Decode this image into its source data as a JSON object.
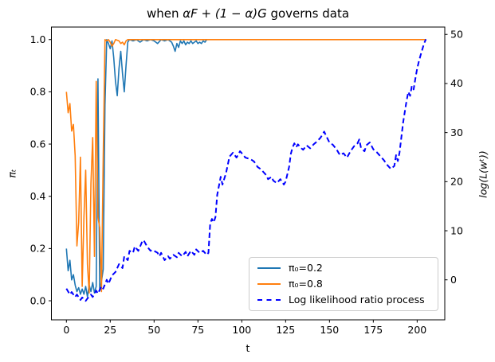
{
  "figure": {
    "background": "#ffffff",
    "spine_color": "#000000"
  },
  "chart_data": {
    "type": "line",
    "title_parts": {
      "prefix": "when ",
      "math": "αF + (1 − α)G",
      "suffix": " governs data"
    },
    "xlabel": "t",
    "ylabel_left": "πₜ",
    "ylabel_right": "log(L(wᵗ))",
    "grid": false,
    "legend_position": "lower right",
    "x_axis": {
      "view": [
        -8.55,
        215.75
      ],
      "tick_values": [
        0,
        25,
        50,
        75,
        100,
        125,
        150,
        175,
        200
      ],
      "tick_labels": [
        "0",
        "25",
        "50",
        "75",
        "100",
        "125",
        "150",
        "175",
        "200"
      ]
    },
    "y_left_axis": {
      "view": [
        -0.073,
        1.048
      ],
      "tick_values": [
        0.0,
        0.2,
        0.4,
        0.6,
        0.8,
        1.0
      ],
      "tick_labels": [
        "0.0",
        "0.2",
        "0.4",
        "0.6",
        "0.8",
        "1.0"
      ]
    },
    "y_right_axis": {
      "view": [
        -8.15,
        51.5
      ],
      "tick_values": [
        0,
        10,
        20,
        30,
        40,
        50
      ],
      "tick_labels": [
        "0",
        "10",
        "20",
        "30",
        "40",
        "50"
      ]
    },
    "series": [
      {
        "name": "π₀=0.2",
        "axis": "left",
        "color": "#1f77b4",
        "style": "solid",
        "width": 1.6,
        "points": [
          [
            0,
            0.2
          ],
          [
            1,
            0.115
          ],
          [
            2,
            0.155
          ],
          [
            3,
            0.08
          ],
          [
            4,
            0.1
          ],
          [
            5,
            0.06
          ],
          [
            6,
            0.035
          ],
          [
            7,
            0.05
          ],
          [
            8,
            0.025
          ],
          [
            9,
            0.045
          ],
          [
            10,
            0.025
          ],
          [
            11,
            0.055
          ],
          [
            12,
            0.015
          ],
          [
            13,
            0.06
          ],
          [
            14,
            0.035
          ],
          [
            15,
            0.07
          ],
          [
            16,
            0.03
          ],
          [
            17,
            0.055
          ],
          [
            18,
            0.85
          ],
          [
            19,
            0.04
          ],
          [
            20,
            0.075
          ],
          [
            21,
            0.12
          ],
          [
            22,
            0.75
          ],
          [
            23,
            1.0
          ],
          [
            24,
            0.985
          ],
          [
            25,
            0.965
          ],
          [
            26,
            0.995
          ],
          [
            27,
            0.93
          ],
          [
            28,
            0.84
          ],
          [
            29,
            0.785
          ],
          [
            30,
            0.89
          ],
          [
            31,
            0.955
          ],
          [
            32,
            0.87
          ],
          [
            33,
            0.8
          ],
          [
            34,
            0.9
          ],
          [
            35,
            0.99
          ],
          [
            36,
            1.0
          ],
          [
            38,
            0.995
          ],
          [
            40,
            1.0
          ],
          [
            42,
            0.99
          ],
          [
            44,
            1.0
          ],
          [
            46,
            0.995
          ],
          [
            48,
            1.0
          ],
          [
            50,
            0.995
          ],
          [
            52,
            0.985
          ],
          [
            54,
            1.0
          ],
          [
            56,
            0.995
          ],
          [
            58,
            1.0
          ],
          [
            60,
            0.99
          ],
          [
            61,
            0.975
          ],
          [
            62,
            0.955
          ],
          [
            63,
            0.985
          ],
          [
            64,
            0.97
          ],
          [
            65,
            0.995
          ],
          [
            66,
            0.985
          ],
          [
            67,
            0.995
          ],
          [
            68,
            0.98
          ],
          [
            69,
            0.99
          ],
          [
            70,
            0.985
          ],
          [
            71,
            0.995
          ],
          [
            72,
            0.985
          ],
          [
            73,
            0.99
          ],
          [
            74,
            0.995
          ],
          [
            75,
            0.985
          ],
          [
            76,
            0.99
          ],
          [
            77,
            0.985
          ],
          [
            78,
            0.995
          ],
          [
            79,
            0.99
          ],
          [
            80,
            1.0
          ]
        ]
      },
      {
        "name": "π₀=0.8",
        "axis": "left",
        "color": "#ff7f0e",
        "style": "solid",
        "width": 1.6,
        "points": [
          [
            0,
            0.8
          ],
          [
            1,
            0.72
          ],
          [
            2,
            0.755
          ],
          [
            3,
            0.65
          ],
          [
            4,
            0.675
          ],
          [
            5,
            0.555
          ],
          [
            6,
            0.21
          ],
          [
            7,
            0.3
          ],
          [
            8,
            0.55
          ],
          [
            9,
            0.055
          ],
          [
            10,
            0.32
          ],
          [
            11,
            0.5
          ],
          [
            12,
            0.14
          ],
          [
            13,
            0.03
          ],
          [
            14,
            0.45
          ],
          [
            15,
            0.625
          ],
          [
            16,
            0.17
          ],
          [
            17,
            0.84
          ],
          [
            18,
            0.32
          ],
          [
            19,
            0.28
          ],
          [
            20,
            0.035
          ],
          [
            21,
            0.55
          ],
          [
            22,
            1.0
          ],
          [
            23,
            0.995
          ],
          [
            24,
            1.0
          ],
          [
            25,
            0.99
          ],
          [
            26,
            0.975
          ],
          [
            27,
            0.985
          ],
          [
            28,
            1.0
          ],
          [
            30,
            0.995
          ],
          [
            31,
            0.985
          ],
          [
            32,
            0.99
          ],
          [
            33,
            0.98
          ],
          [
            34,
            0.995
          ],
          [
            35,
            1.0
          ],
          [
            60,
            1.0
          ],
          [
            100,
            1.0
          ],
          [
            150,
            1.0
          ],
          [
            205,
            1.0
          ]
        ]
      },
      {
        "name": "Log likelihood ratio process",
        "axis": "right",
        "color": "#0000ff",
        "style": "dashed",
        "width": 2.0,
        "points": [
          [
            0,
            -1.8
          ],
          [
            2,
            -3
          ],
          [
            3,
            -2.5
          ],
          [
            5,
            -3.5
          ],
          [
            6,
            -3
          ],
          [
            8,
            -4.1
          ],
          [
            9,
            -3.6
          ],
          [
            11,
            -4.3
          ],
          [
            12,
            -3.8
          ],
          [
            14,
            -3
          ],
          [
            15,
            -3.5
          ],
          [
            17,
            -2.2
          ],
          [
            18,
            -2.8
          ],
          [
            20,
            -1.3
          ],
          [
            21,
            -1.8
          ],
          [
            23,
            0
          ],
          [
            24,
            -0.8
          ],
          [
            26,
            0.9
          ],
          [
            28,
            1.6
          ],
          [
            30,
            3.2
          ],
          [
            32,
            2.4
          ],
          [
            33,
            4.8
          ],
          [
            35,
            4
          ],
          [
            36,
            5.9
          ],
          [
            38,
            5.5
          ],
          [
            39,
            6.8
          ],
          [
            41,
            5.9
          ],
          [
            43,
            7.6
          ],
          [
            44,
            8.1
          ],
          [
            46,
            6.8
          ],
          [
            48,
            5.9
          ],
          [
            49,
            6.1
          ],
          [
            52,
            5.5
          ],
          [
            53,
            4.8
          ],
          [
            54,
            5.5
          ],
          [
            56,
            4
          ],
          [
            58,
            4.8
          ],
          [
            59,
            4.3
          ],
          [
            61,
            5.1
          ],
          [
            63,
            4.6
          ],
          [
            64,
            5.5
          ],
          [
            66,
            4.8
          ],
          [
            68,
            5.7
          ],
          [
            69,
            4.8
          ],
          [
            71,
            5.9
          ],
          [
            73,
            5.1
          ],
          [
            74,
            6.2
          ],
          [
            76,
            5.5
          ],
          [
            78,
            5.9
          ],
          [
            80,
            5.1
          ],
          [
            81,
            5.5
          ],
          [
            82,
            11.5
          ],
          [
            83,
            12.4
          ],
          [
            84,
            11.7
          ],
          [
            85,
            12.8
          ],
          [
            86,
            17.3
          ],
          [
            88,
            21
          ],
          [
            89,
            19.4
          ],
          [
            91,
            21.7
          ],
          [
            93,
            25.1
          ],
          [
            95,
            25.9
          ],
          [
            97,
            24.9
          ],
          [
            99,
            26.2
          ],
          [
            101,
            25.4
          ],
          [
            102,
            24.9
          ],
          [
            105,
            24.6
          ],
          [
            107,
            24.1
          ],
          [
            109,
            23
          ],
          [
            111,
            22.5
          ],
          [
            114,
            21.3
          ],
          [
            115,
            20.5
          ],
          [
            117,
            21
          ],
          [
            118,
            20.2
          ],
          [
            120,
            19.7
          ],
          [
            122,
            20.5
          ],
          [
            124,
            19.4
          ],
          [
            125,
            20
          ],
          [
            127,
            23
          ],
          [
            128,
            25.7
          ],
          [
            129,
            27
          ],
          [
            130,
            27.8
          ],
          [
            131,
            27
          ],
          [
            132,
            27.6
          ],
          [
            134,
            26.8
          ],
          [
            135,
            26.5
          ],
          [
            137,
            27.4
          ],
          [
            139,
            26.8
          ],
          [
            141,
            27.6
          ],
          [
            143,
            28.2
          ],
          [
            145,
            29
          ],
          [
            147,
            30.2
          ],
          [
            148,
            29.4
          ],
          [
            150,
            28
          ],
          [
            152,
            27.5
          ],
          [
            154,
            26.6
          ],
          [
            156,
            25.4
          ],
          [
            158,
            25.8
          ],
          [
            160,
            24.9
          ],
          [
            162,
            26.2
          ],
          [
            164,
            27.2
          ],
          [
            166,
            27.8
          ],
          [
            167,
            28.6
          ],
          [
            168,
            26.9
          ],
          [
            170,
            26.2
          ],
          [
            171,
            27.4
          ],
          [
            173,
            28
          ],
          [
            175,
            26.6
          ],
          [
            177,
            26
          ],
          [
            179,
            25.2
          ],
          [
            181,
            24.4
          ],
          [
            183,
            23.4
          ],
          [
            185,
            22.6
          ],
          [
            187,
            23.2
          ],
          [
            188,
            25.4
          ],
          [
            189,
            24.2
          ],
          [
            190,
            26
          ],
          [
            191,
            29
          ],
          [
            192,
            32
          ],
          [
            193,
            34.3
          ],
          [
            194,
            36.5
          ],
          [
            195,
            38.3
          ],
          [
            196,
            37.5
          ],
          [
            197,
            39.5
          ],
          [
            198,
            38.8
          ],
          [
            199,
            41
          ],
          [
            200,
            43
          ],
          [
            201,
            44.5
          ],
          [
            202,
            45.8
          ],
          [
            203,
            47
          ],
          [
            204,
            48.2
          ],
          [
            205,
            49
          ]
        ]
      }
    ]
  }
}
